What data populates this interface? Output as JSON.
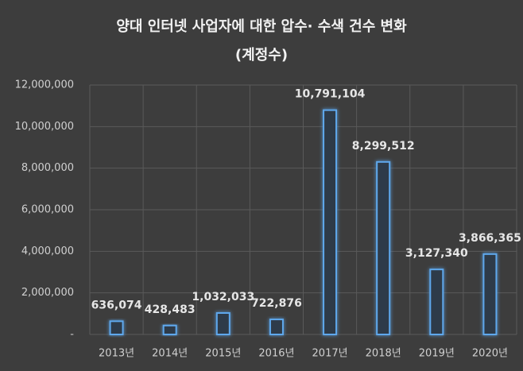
{
  "chart_data": {
    "type": "bar",
    "title": "양대 인터넷 사업자에 대한 압수· 수색 건수 변화",
    "subtitle": "(계정수)",
    "categories": [
      "2013년",
      "2014년",
      "2015년",
      "2016년",
      "2017년",
      "2018년",
      "2019년",
      "2020년"
    ],
    "values": [
      636074,
      428483,
      1032033,
      722876,
      10791104,
      8299512,
      3127340,
      3866365
    ],
    "value_labels": [
      "636,074",
      "428,483",
      "1,032,033",
      "722,876",
      "10,791,104",
      "8,299,512",
      "3,127,340",
      "3,866,365"
    ],
    "color": "#5ea8ec",
    "ylim": [
      0,
      12000000
    ],
    "yticks": [
      {
        "value": 0,
        "label": "-"
      },
      {
        "value": 2000000,
        "label": "2,000,000"
      },
      {
        "value": 4000000,
        "label": "4,000,000"
      },
      {
        "value": 6000000,
        "label": "6,000,000"
      },
      {
        "value": 8000000,
        "label": "8,000,000"
      },
      {
        "value": 10000000,
        "label": "10,000,000"
      },
      {
        "value": 12000000,
        "label": "12,000,000"
      }
    ],
    "grid": true
  }
}
